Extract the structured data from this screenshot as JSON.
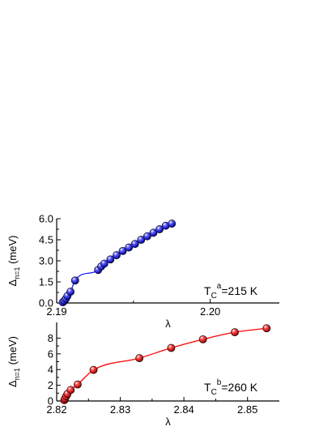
{
  "chart_data": [
    {
      "type": "scatter",
      "xlabel": "λ",
      "ylabel_main": "Δ",
      "ylabel_sub": "n=1",
      "ylabel_unit": " (meV)",
      "annotation": {
        "base": "T",
        "sub": "C",
        "sup": "a",
        "rest": "=215 K"
      },
      "xlim": [
        2.19,
        2.2045
      ],
      "ylim": [
        0,
        6.0
      ],
      "xticks": [
        2.19,
        2.2
      ],
      "xtick_labels": [
        "2.19",
        "2.20"
      ],
      "yticks": [
        0,
        1.5,
        3.0,
        4.5,
        6.0
      ],
      "ytick_labels": [
        "0.0",
        "1.5",
        "3.0",
        "4.5",
        "6.0"
      ],
      "color": "#1a1aff",
      "series": [
        {
          "x": [
            2.1904,
            2.1905,
            2.1906,
            2.1907,
            2.1909,
            2.1912,
            2.1927,
            2.1929,
            2.1931,
            2.1935,
            2.1939,
            2.1943,
            2.1947,
            2.1951,
            2.1955,
            2.1959,
            2.1963,
            2.1967,
            2.1971,
            2.1975
          ],
          "y": [
            0.05,
            0.15,
            0.3,
            0.5,
            0.8,
            1.6,
            2.35,
            2.6,
            2.8,
            3.1,
            3.4,
            3.7,
            3.95,
            4.2,
            4.5,
            4.75,
            5.0,
            5.25,
            5.5,
            5.65
          ]
        }
      ]
    },
    {
      "type": "scatter",
      "xlabel": "λ",
      "ylabel_main": "Δ",
      "ylabel_sub": "n=1",
      "ylabel_unit": " (meV)",
      "annotation": {
        "base": "T",
        "sub": "C",
        "sup": "b",
        "rest": "=260 K"
      },
      "xlim": [
        2.82,
        2.855
      ],
      "ylim": [
        0,
        10
      ],
      "xticks": [
        2.82,
        2.83,
        2.84,
        2.85
      ],
      "xtick_labels": [
        "2.82",
        "2.83",
        "2.84",
        "2.85"
      ],
      "yticks": [
        0,
        2,
        4,
        6,
        8
      ],
      "ytick_labels": [
        "0",
        "2",
        "4",
        "6",
        "8"
      ],
      "color": "#ff0000",
      "series": [
        {
          "x": [
            2.8212,
            2.8213,
            2.8215,
            2.8217,
            2.8222,
            2.8233,
            2.8258,
            2.833,
            2.838,
            2.843,
            2.848,
            2.853
          ],
          "y": [
            0.1,
            0.3,
            0.6,
            0.9,
            1.4,
            2.1,
            3.95,
            5.45,
            6.75,
            7.85,
            8.75,
            9.25
          ]
        }
      ]
    }
  ]
}
